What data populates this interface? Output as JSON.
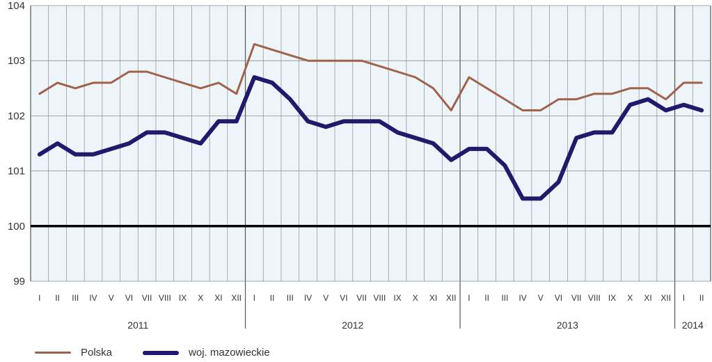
{
  "chart_data": {
    "type": "line",
    "title": "",
    "xlabel": "",
    "ylabel": "",
    "ylim": [
      99,
      104
    ],
    "yticks": [
      "99",
      "100",
      "101",
      "102",
      "103",
      "104"
    ],
    "reference_line": 100,
    "grid": true,
    "legend_position": "bottom-left",
    "categories": [
      "I",
      "II",
      "III",
      "IV",
      "V",
      "VI",
      "VII",
      "VIII",
      "IX",
      "X",
      "XI",
      "XII",
      "I",
      "II",
      "III",
      "IV",
      "V",
      "VI",
      "VII",
      "VIII",
      "IX",
      "X",
      "XI",
      "XII",
      "I",
      "II",
      "III",
      "IV",
      "V",
      "VI",
      "VII",
      "VIII",
      "IX",
      "X",
      "XI",
      "XII",
      "I",
      "II"
    ],
    "years": [
      {
        "label": "2011",
        "months": 12
      },
      {
        "label": "2012",
        "months": 12
      },
      {
        "label": "2013",
        "months": 12
      },
      {
        "label": "2014",
        "months": 2
      }
    ],
    "series": [
      {
        "name": "Polska",
        "color": "#a0624a",
        "width": 3,
        "values": [
          102.4,
          102.6,
          102.5,
          102.6,
          102.6,
          102.8,
          102.8,
          102.7,
          102.6,
          102.5,
          102.6,
          102.4,
          103.3,
          103.2,
          103.1,
          103.0,
          103.0,
          103.0,
          103.0,
          102.9,
          102.8,
          102.7,
          102.5,
          102.1,
          102.7,
          102.5,
          102.3,
          102.1,
          102.1,
          102.3,
          102.3,
          102.4,
          102.4,
          102.5,
          102.5,
          102.3,
          102.6,
          102.6
        ]
      },
      {
        "name": "woj. mazowieckie",
        "color": "#1f1a6b",
        "width": 6,
        "values": [
          101.3,
          101.5,
          101.3,
          101.3,
          101.4,
          101.5,
          101.7,
          101.7,
          101.6,
          101.5,
          101.9,
          101.9,
          102.7,
          102.6,
          102.3,
          101.9,
          101.8,
          101.9,
          101.9,
          101.9,
          101.7,
          101.6,
          101.5,
          101.2,
          101.4,
          101.4,
          101.1,
          100.5,
          100.5,
          100.8,
          101.6,
          101.7,
          101.7,
          102.2,
          102.3,
          102.1,
          102.2,
          102.1
        ]
      }
    ],
    "colors": {
      "plot_background": "#edf5fb",
      "grid": "#8c8c8c",
      "reference_line": "#000000"
    }
  }
}
